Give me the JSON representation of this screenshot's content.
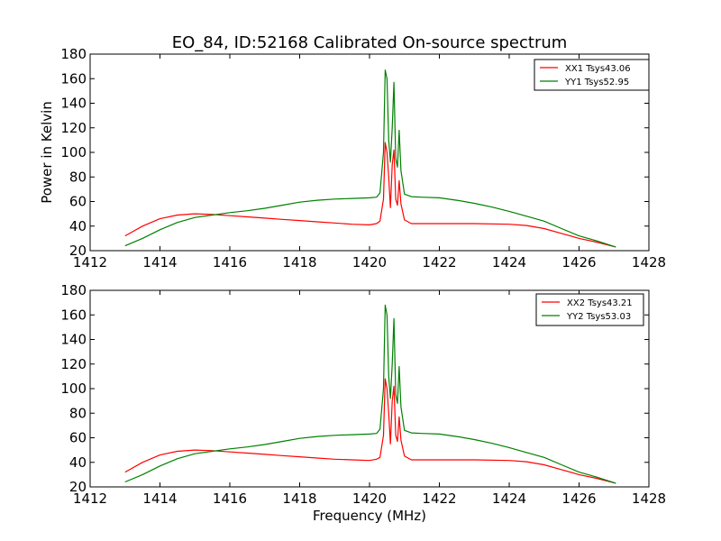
{
  "figure": {
    "title": "EO_84, ID:52168 Calibrated On-source spectrum",
    "xlabel": "Frequency (MHz)",
    "ylabel": "Power in Kelvin"
  },
  "colors": {
    "xx": "#ff0000",
    "yy": "#008000",
    "background": "#ffffff"
  },
  "chart_data": [
    {
      "type": "line",
      "title": "EO_84, ID:52168 Calibrated On-source spectrum",
      "xlabel": "",
      "ylabel": "Power in Kelvin",
      "xlim": [
        1412,
        1428
      ],
      "ylim": [
        20,
        180
      ],
      "xticks": [
        "1412",
        "1414",
        "1416",
        "1418",
        "1420",
        "1422",
        "1424",
        "1426",
        "1428"
      ],
      "yticks": [
        "20",
        "40",
        "60",
        "80",
        "100",
        "120",
        "140",
        "160",
        "180"
      ],
      "legend_position": "top-right",
      "grid": false,
      "series": [
        {
          "name": "XX1 Tsys43.06",
          "color": "#ff0000",
          "x": [
            1413,
            1413.5,
            1414,
            1414.5,
            1415,
            1415.5,
            1416,
            1416.5,
            1417,
            1417.5,
            1418,
            1418.5,
            1419,
            1419.5,
            1420,
            1420.2,
            1420.3,
            1420.4,
            1420.45,
            1420.5,
            1420.55,
            1420.6,
            1420.65,
            1420.7,
            1420.75,
            1420.8,
            1420.85,
            1420.9,
            1421,
            1421.2,
            1421.5,
            1422,
            1423,
            1424,
            1424.5,
            1425,
            1425.5,
            1426,
            1426.5,
            1427.05
          ],
          "y": [
            32,
            40,
            46,
            49,
            50,
            49.5,
            48.5,
            47.5,
            46.5,
            45.5,
            44.5,
            43.5,
            42.5,
            41.5,
            41,
            42,
            44,
            62,
            108,
            100,
            80,
            55,
            90,
            102,
            62,
            57,
            77,
            58,
            45,
            42,
            42,
            42,
            42,
            41.5,
            40.5,
            38,
            34,
            30,
            27,
            23
          ]
        },
        {
          "name": "YY1 Tsys52.95",
          "color": "#008000",
          "x": [
            1413,
            1413.5,
            1414,
            1414.5,
            1415,
            1415.5,
            1416,
            1416.5,
            1417,
            1417.5,
            1418,
            1418.5,
            1419,
            1419.5,
            1420,
            1420.2,
            1420.3,
            1420.4,
            1420.45,
            1420.5,
            1420.55,
            1420.6,
            1420.65,
            1420.7,
            1420.75,
            1420.8,
            1420.85,
            1420.9,
            1421,
            1421.2,
            1421.5,
            1422,
            1422.5,
            1423,
            1423.5,
            1424,
            1424.5,
            1425,
            1425.5,
            1426,
            1426.5,
            1427.05
          ],
          "y": [
            24,
            30,
            37,
            43,
            47,
            49,
            51,
            52.5,
            54.5,
            57,
            59.5,
            61,
            62,
            62.5,
            63,
            63.5,
            67,
            100,
            167,
            160,
            110,
            92,
            120,
            157,
            95,
            88,
            118,
            85,
            66,
            64,
            63.5,
            63,
            61,
            58.5,
            55.5,
            52,
            48,
            44,
            38,
            32,
            28,
            23
          ]
        }
      ]
    },
    {
      "type": "line",
      "title": "",
      "xlabel": "Frequency (MHz)",
      "ylabel": "",
      "xlim": [
        1412,
        1428
      ],
      "ylim": [
        20,
        180
      ],
      "xticks": [
        "1412",
        "1414",
        "1416",
        "1418",
        "1420",
        "1422",
        "1424",
        "1426",
        "1428"
      ],
      "yticks": [
        "20",
        "40",
        "60",
        "80",
        "100",
        "120",
        "140",
        "160",
        "180"
      ],
      "legend_position": "top-right",
      "grid": false,
      "series": [
        {
          "name": "XX2 Tsys43.21",
          "color": "#ff0000",
          "x": [
            1413,
            1413.5,
            1414,
            1414.5,
            1415,
            1415.5,
            1416,
            1416.5,
            1417,
            1417.5,
            1418,
            1418.5,
            1419,
            1419.5,
            1420,
            1420.2,
            1420.3,
            1420.4,
            1420.45,
            1420.5,
            1420.55,
            1420.6,
            1420.65,
            1420.7,
            1420.75,
            1420.8,
            1420.85,
            1420.9,
            1421,
            1421.2,
            1421.5,
            1422,
            1423,
            1424,
            1424.5,
            1425,
            1425.5,
            1426,
            1426.5,
            1427.05
          ],
          "y": [
            32,
            40,
            46,
            49,
            50,
            49.5,
            48.5,
            47.5,
            46.5,
            45.5,
            44.5,
            43.5,
            42.5,
            42,
            41.5,
            42.5,
            44,
            62,
            108,
            100,
            80,
            55,
            90,
            102,
            62,
            57,
            77,
            58,
            45,
            42,
            42,
            42,
            42,
            41.5,
            40.5,
            38,
            34,
            30,
            27,
            23
          ]
        },
        {
          "name": "YY2 Tsys53.03",
          "color": "#008000",
          "x": [
            1413,
            1413.5,
            1414,
            1414.5,
            1415,
            1415.5,
            1416,
            1416.5,
            1417,
            1417.5,
            1418,
            1418.5,
            1419,
            1419.5,
            1420,
            1420.2,
            1420.3,
            1420.4,
            1420.45,
            1420.5,
            1420.55,
            1420.6,
            1420.65,
            1420.7,
            1420.75,
            1420.8,
            1420.85,
            1420.9,
            1421,
            1421.2,
            1421.5,
            1422,
            1422.5,
            1423,
            1423.5,
            1424,
            1424.5,
            1425,
            1425.5,
            1426,
            1426.5,
            1427.05
          ],
          "y": [
            24,
            30,
            37,
            43,
            47,
            49,
            51,
            52.5,
            54.5,
            57,
            59.5,
            61,
            62,
            62.5,
            63,
            63.5,
            67,
            100,
            168,
            160,
            110,
            92,
            120,
            157,
            95,
            88,
            118,
            85,
            66,
            64,
            63.5,
            63,
            61,
            58.5,
            55.5,
            52,
            48,
            44,
            38,
            32,
            28,
            23
          ]
        }
      ]
    }
  ]
}
